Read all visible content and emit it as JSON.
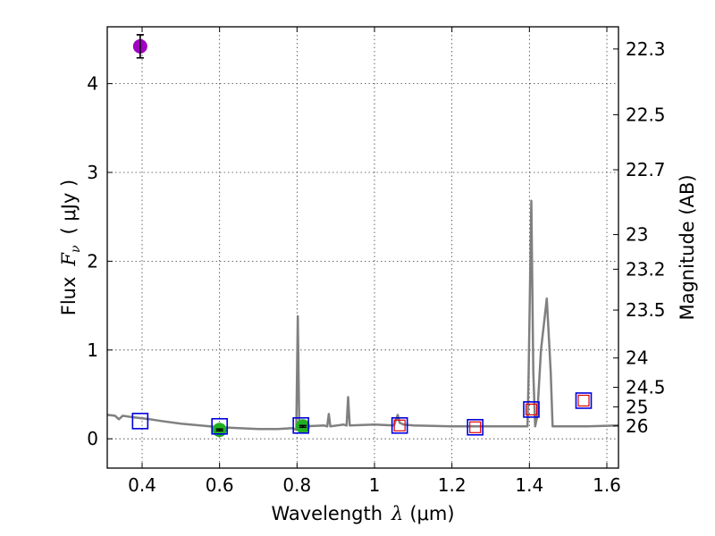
{
  "chart_data": {
    "type": "scatter",
    "xlabel_prefix": "Wavelength",
    "xlabel_symbol": "λ",
    "xlabel_unit": "(μm)",
    "ylabel_prefix": "Flux",
    "ylabel_symbol": "F",
    "ylabel_subscript": "ν",
    "ylabel_unit": "( μJy )",
    "y2label": "Magnitude (AB)",
    "xlim": [
      0.31,
      1.63
    ],
    "ylim": [
      -0.33,
      4.64
    ],
    "xticks": [
      0.4,
      0.6,
      0.8,
      1.0,
      1.2,
      1.4,
      1.6
    ],
    "xtick_labels": [
      "0.4",
      "0.6",
      "0.8",
      "1",
      "1.2",
      "1.4",
      "1.6"
    ],
    "yticks": [
      0,
      1,
      2,
      3,
      4
    ],
    "ytick_labels": [
      "0",
      "1",
      "2",
      "3",
      "4"
    ],
    "mag_ticks": [
      {
        "label": "22.3",
        "flux": 4.39
      },
      {
        "label": "22.5",
        "flux": 3.65
      },
      {
        "label": "22.7",
        "flux": 3.03
      },
      {
        "label": "23",
        "flux": 2.3
      },
      {
        "label": "23.2",
        "flux": 1.91
      },
      {
        "label": "23.5",
        "flux": 1.45
      },
      {
        "label": "24",
        "flux": 0.91
      },
      {
        "label": "24.5",
        "flux": 0.58
      },
      {
        "label": "25",
        "flux": 0.36
      },
      {
        "label": "26",
        "flux": 0.145
      }
    ],
    "grid": true,
    "model_spectrum": {
      "name": "SED model",
      "color": "#808080",
      "x": [
        0.31,
        0.33,
        0.34,
        0.35,
        0.38,
        0.42,
        0.45,
        0.5,
        0.55,
        0.6,
        0.65,
        0.7,
        0.75,
        0.79,
        0.798,
        0.802,
        0.806,
        0.82,
        0.87,
        0.878,
        0.882,
        0.886,
        0.92,
        0.928,
        0.932,
        0.936,
        1.0,
        1.05,
        1.06,
        1.065,
        1.075,
        1.1,
        1.2,
        1.3,
        1.395,
        1.398,
        1.405,
        1.41,
        1.415,
        1.42,
        1.43,
        1.445,
        1.455,
        1.46,
        1.5,
        1.55,
        1.63
      ],
      "y": [
        0.27,
        0.26,
        0.22,
        0.26,
        0.24,
        0.22,
        0.2,
        0.17,
        0.15,
        0.13,
        0.12,
        0.11,
        0.11,
        0.12,
        0.1,
        1.38,
        0.1,
        0.14,
        0.15,
        0.14,
        0.28,
        0.14,
        0.16,
        0.15,
        0.47,
        0.15,
        0.16,
        0.15,
        0.27,
        0.18,
        0.16,
        0.15,
        0.14,
        0.14,
        0.14,
        0.75,
        2.68,
        0.75,
        0.14,
        0.25,
        1.0,
        1.58,
        0.75,
        0.14,
        0.14,
        0.14,
        0.15
      ]
    },
    "points": [
      {
        "series": "measured-magenta",
        "x": 0.395,
        "y": 4.42,
        "err": 0.13,
        "marker": "circle",
        "color": "#a000c0"
      },
      {
        "series": "measured-green",
        "x": 0.6,
        "y": 0.1,
        "err": 0.01,
        "marker": "circle",
        "color": "#20b020"
      },
      {
        "series": "measured-green",
        "x": 0.815,
        "y": 0.14,
        "err": 0.01,
        "marker": "circle",
        "color": "#20b020"
      },
      {
        "series": "model-band-blue",
        "x": 0.395,
        "y": 0.2,
        "marker": "square-open",
        "color": "#0000dd"
      },
      {
        "series": "model-band-blue",
        "x": 0.6,
        "y": 0.14,
        "marker": "square-open",
        "color": "#0000dd"
      },
      {
        "series": "model-band-blue",
        "x": 0.81,
        "y": 0.15,
        "marker": "square-open",
        "color": "#0000dd"
      },
      {
        "series": "model-band-blue",
        "x": 1.065,
        "y": 0.15,
        "marker": "square-open",
        "color": "#0000dd"
      },
      {
        "series": "model-band-blue",
        "x": 1.26,
        "y": 0.13,
        "marker": "square-open",
        "color": "#0000dd"
      },
      {
        "series": "model-band-blue",
        "x": 1.405,
        "y": 0.33,
        "marker": "square-open",
        "color": "#0000dd"
      },
      {
        "series": "model-band-blue",
        "x": 1.54,
        "y": 0.43,
        "marker": "square-open",
        "color": "#0000dd"
      },
      {
        "series": "model-band-red",
        "x": 1.065,
        "y": 0.15,
        "marker": "square-open-small",
        "color": "#dd0000"
      },
      {
        "series": "model-band-red",
        "x": 1.26,
        "y": 0.13,
        "marker": "square-open-small",
        "color": "#dd0000"
      },
      {
        "series": "model-band-red",
        "x": 1.405,
        "y": 0.33,
        "marker": "square-open-small",
        "color": "#dd0000"
      },
      {
        "series": "model-band-red",
        "x": 1.54,
        "y": 0.43,
        "marker": "square-open-small",
        "color": "#dd0000"
      }
    ]
  }
}
